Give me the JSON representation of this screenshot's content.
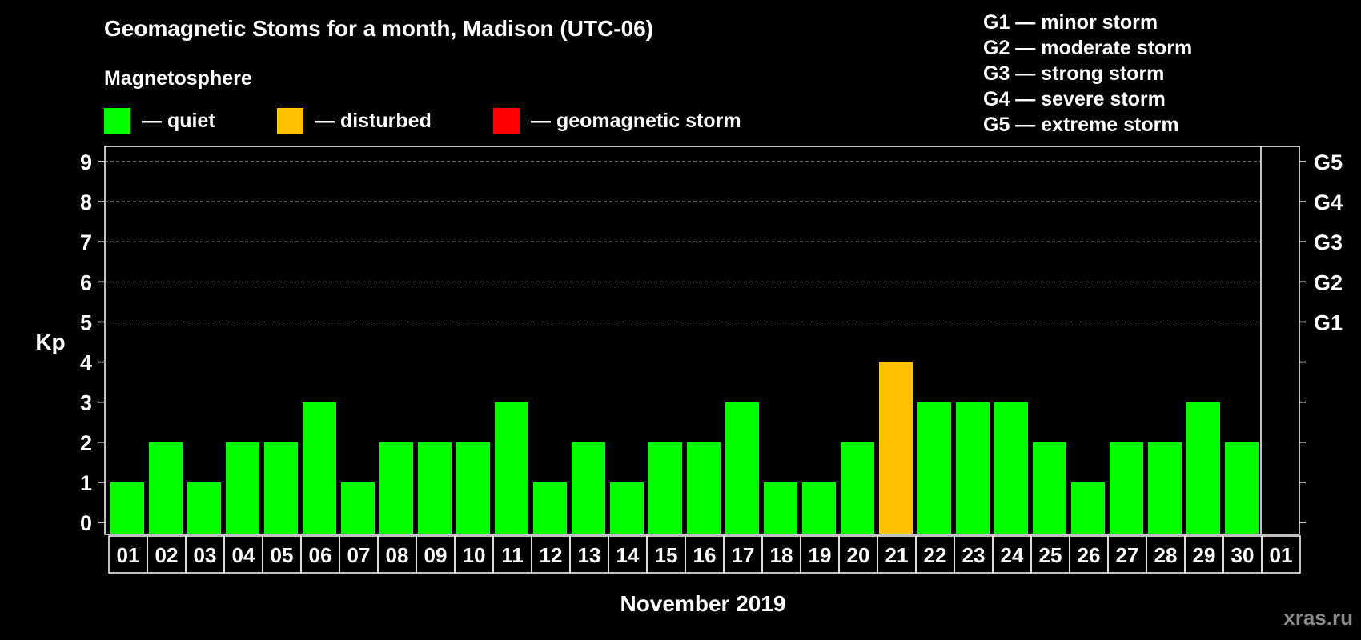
{
  "chart_data": {
    "type": "bar",
    "title": "Geomagnetic Stoms for a month, Madison (UTC-06)",
    "subtitle": "Magnetosphere",
    "ylabel": "Kp",
    "xlabel": "November 2019",
    "ylim": [
      0,
      9
    ],
    "yticks": [
      "0",
      "1",
      "2",
      "3",
      "4",
      "5",
      "6",
      "7",
      "8",
      "9"
    ],
    "storm_levels": [
      {
        "kp": 5,
        "label": "G1"
      },
      {
        "kp": 6,
        "label": "G2"
      },
      {
        "kp": 7,
        "label": "G3"
      },
      {
        "kp": 8,
        "label": "G4"
      },
      {
        "kp": 9,
        "label": "G5"
      }
    ],
    "categories": [
      "01",
      "02",
      "03",
      "04",
      "05",
      "06",
      "07",
      "08",
      "09",
      "10",
      "11",
      "12",
      "13",
      "14",
      "15",
      "16",
      "17",
      "18",
      "19",
      "20",
      "21",
      "22",
      "23",
      "24",
      "25",
      "26",
      "27",
      "28",
      "29",
      "30",
      "01"
    ],
    "values": [
      1,
      2,
      1,
      2,
      2,
      3,
      1,
      2,
      2,
      2,
      3,
      1,
      2,
      1,
      2,
      2,
      3,
      1,
      1,
      2,
      4,
      3,
      3,
      3,
      2,
      1,
      2,
      2,
      3,
      2,
      null
    ],
    "status": [
      "quiet",
      "quiet",
      "quiet",
      "quiet",
      "quiet",
      "quiet",
      "quiet",
      "quiet",
      "quiet",
      "quiet",
      "quiet",
      "quiet",
      "quiet",
      "quiet",
      "quiet",
      "quiet",
      "quiet",
      "quiet",
      "quiet",
      "quiet",
      "disturbed",
      "quiet",
      "quiet",
      "quiet",
      "quiet",
      "quiet",
      "quiet",
      "quiet",
      "quiet",
      "quiet",
      null
    ],
    "legend": [
      {
        "key": "quiet",
        "label": "— quiet",
        "color": "#00ff00"
      },
      {
        "key": "disturbed",
        "label": "— disturbed",
        "color": "#ffc000"
      },
      {
        "key": "storm",
        "label": "— geomagnetic storm",
        "color": "#ff0000"
      }
    ],
    "storm_legend": [
      "G1 — minor storm",
      "G2 — moderate storm",
      "G3 — strong storm",
      "G4 — severe storm",
      "G5 — extreme storm"
    ]
  },
  "watermark": "xras.ru"
}
